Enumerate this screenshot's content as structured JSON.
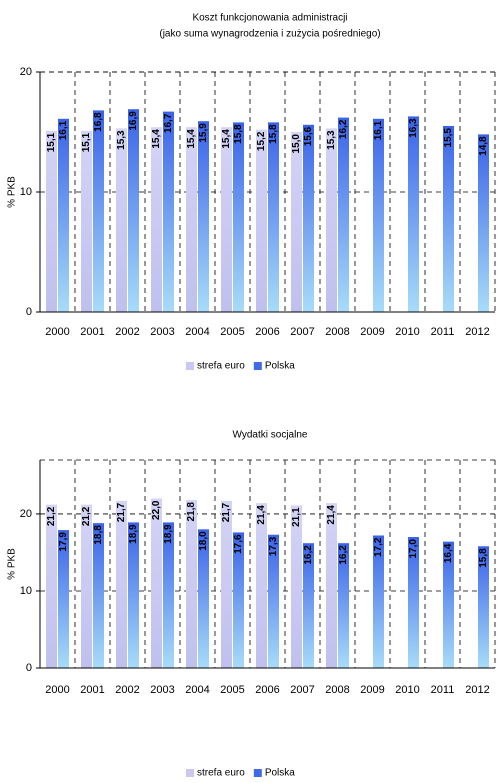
{
  "chart_data": [
    {
      "type": "bar",
      "title": "Koszt funkcjonowania administracji",
      "subtitle": "(jako suma wynagrodzenia i zużycia pośredniego)",
      "y_label": "% PKB",
      "categories": [
        "2000",
        "2001",
        "2002",
        "2003",
        "2004",
        "2005",
        "2006",
        "2007",
        "2008",
        "2009",
        "2010",
        "2011",
        "2012"
      ],
      "series": [
        {
          "name": "strefa euro",
          "color": "#c8c8f2",
          "values": [
            15.1,
            15.1,
            15.3,
            15.4,
            15.4,
            15.4,
            15.2,
            15.0,
            15.3,
            null,
            null,
            null,
            null
          ],
          "value_labels": [
            "15,1",
            "15,1",
            "15,3",
            "15,4",
            "15,4",
            "15,4",
            "15,2",
            "15,0",
            "15,3",
            null,
            null,
            null,
            null
          ]
        },
        {
          "name": "Polska",
          "color": "#4169e8",
          "values": [
            16.1,
            16.8,
            16.9,
            16.7,
            15.9,
            15.8,
            15.8,
            15.6,
            16.2,
            16.1,
            16.3,
            15.5,
            14.8
          ],
          "value_labels": [
            "16,1",
            "16,8",
            "16,9",
            "16,7",
            "15,9",
            "15,8",
            "15,8",
            "15,6",
            "16,2",
            "16,1",
            "16,3",
            "15,5",
            "14,8"
          ]
        }
      ],
      "ylim": [
        0,
        20
      ],
      "yticks": [
        0,
        10,
        20
      ],
      "grid": true
    },
    {
      "type": "bar",
      "title": "Wydatki socjalne",
      "y_label": "% PKB",
      "categories": [
        "2000",
        "2001",
        "2002",
        "2003",
        "2004",
        "2005",
        "2006",
        "2007",
        "2008",
        "2009",
        "2010",
        "2011",
        "2012"
      ],
      "series": [
        {
          "name": "strefa euro",
          "color": "#c8c8f2",
          "values": [
            21.2,
            21.2,
            21.7,
            22.0,
            21.8,
            21.7,
            21.4,
            21.1,
            21.4,
            null,
            null,
            null,
            null
          ],
          "value_labels": [
            "21,2",
            "21,2",
            "21,7",
            "22,0",
            "21,8",
            "21,7",
            "21,4",
            "21,1",
            "21,4",
            null,
            null,
            null,
            null
          ]
        },
        {
          "name": "Polska",
          "color": "#4169e8",
          "values": [
            17.9,
            18.8,
            18.9,
            18.9,
            18.0,
            17.6,
            17.3,
            16.2,
            16.2,
            17.2,
            17.0,
            16.4,
            15.8
          ],
          "value_labels": [
            "17,9",
            "18,8",
            "18,9",
            "18,9",
            "18,0",
            "17,6",
            "17,3",
            "16,2",
            "16,2",
            "17,2",
            "17,0",
            "16,4",
            "15,8"
          ]
        }
      ],
      "ylim": [
        0,
        27
      ],
      "yticks": [
        0,
        10,
        20
      ],
      "grid": true
    }
  ]
}
